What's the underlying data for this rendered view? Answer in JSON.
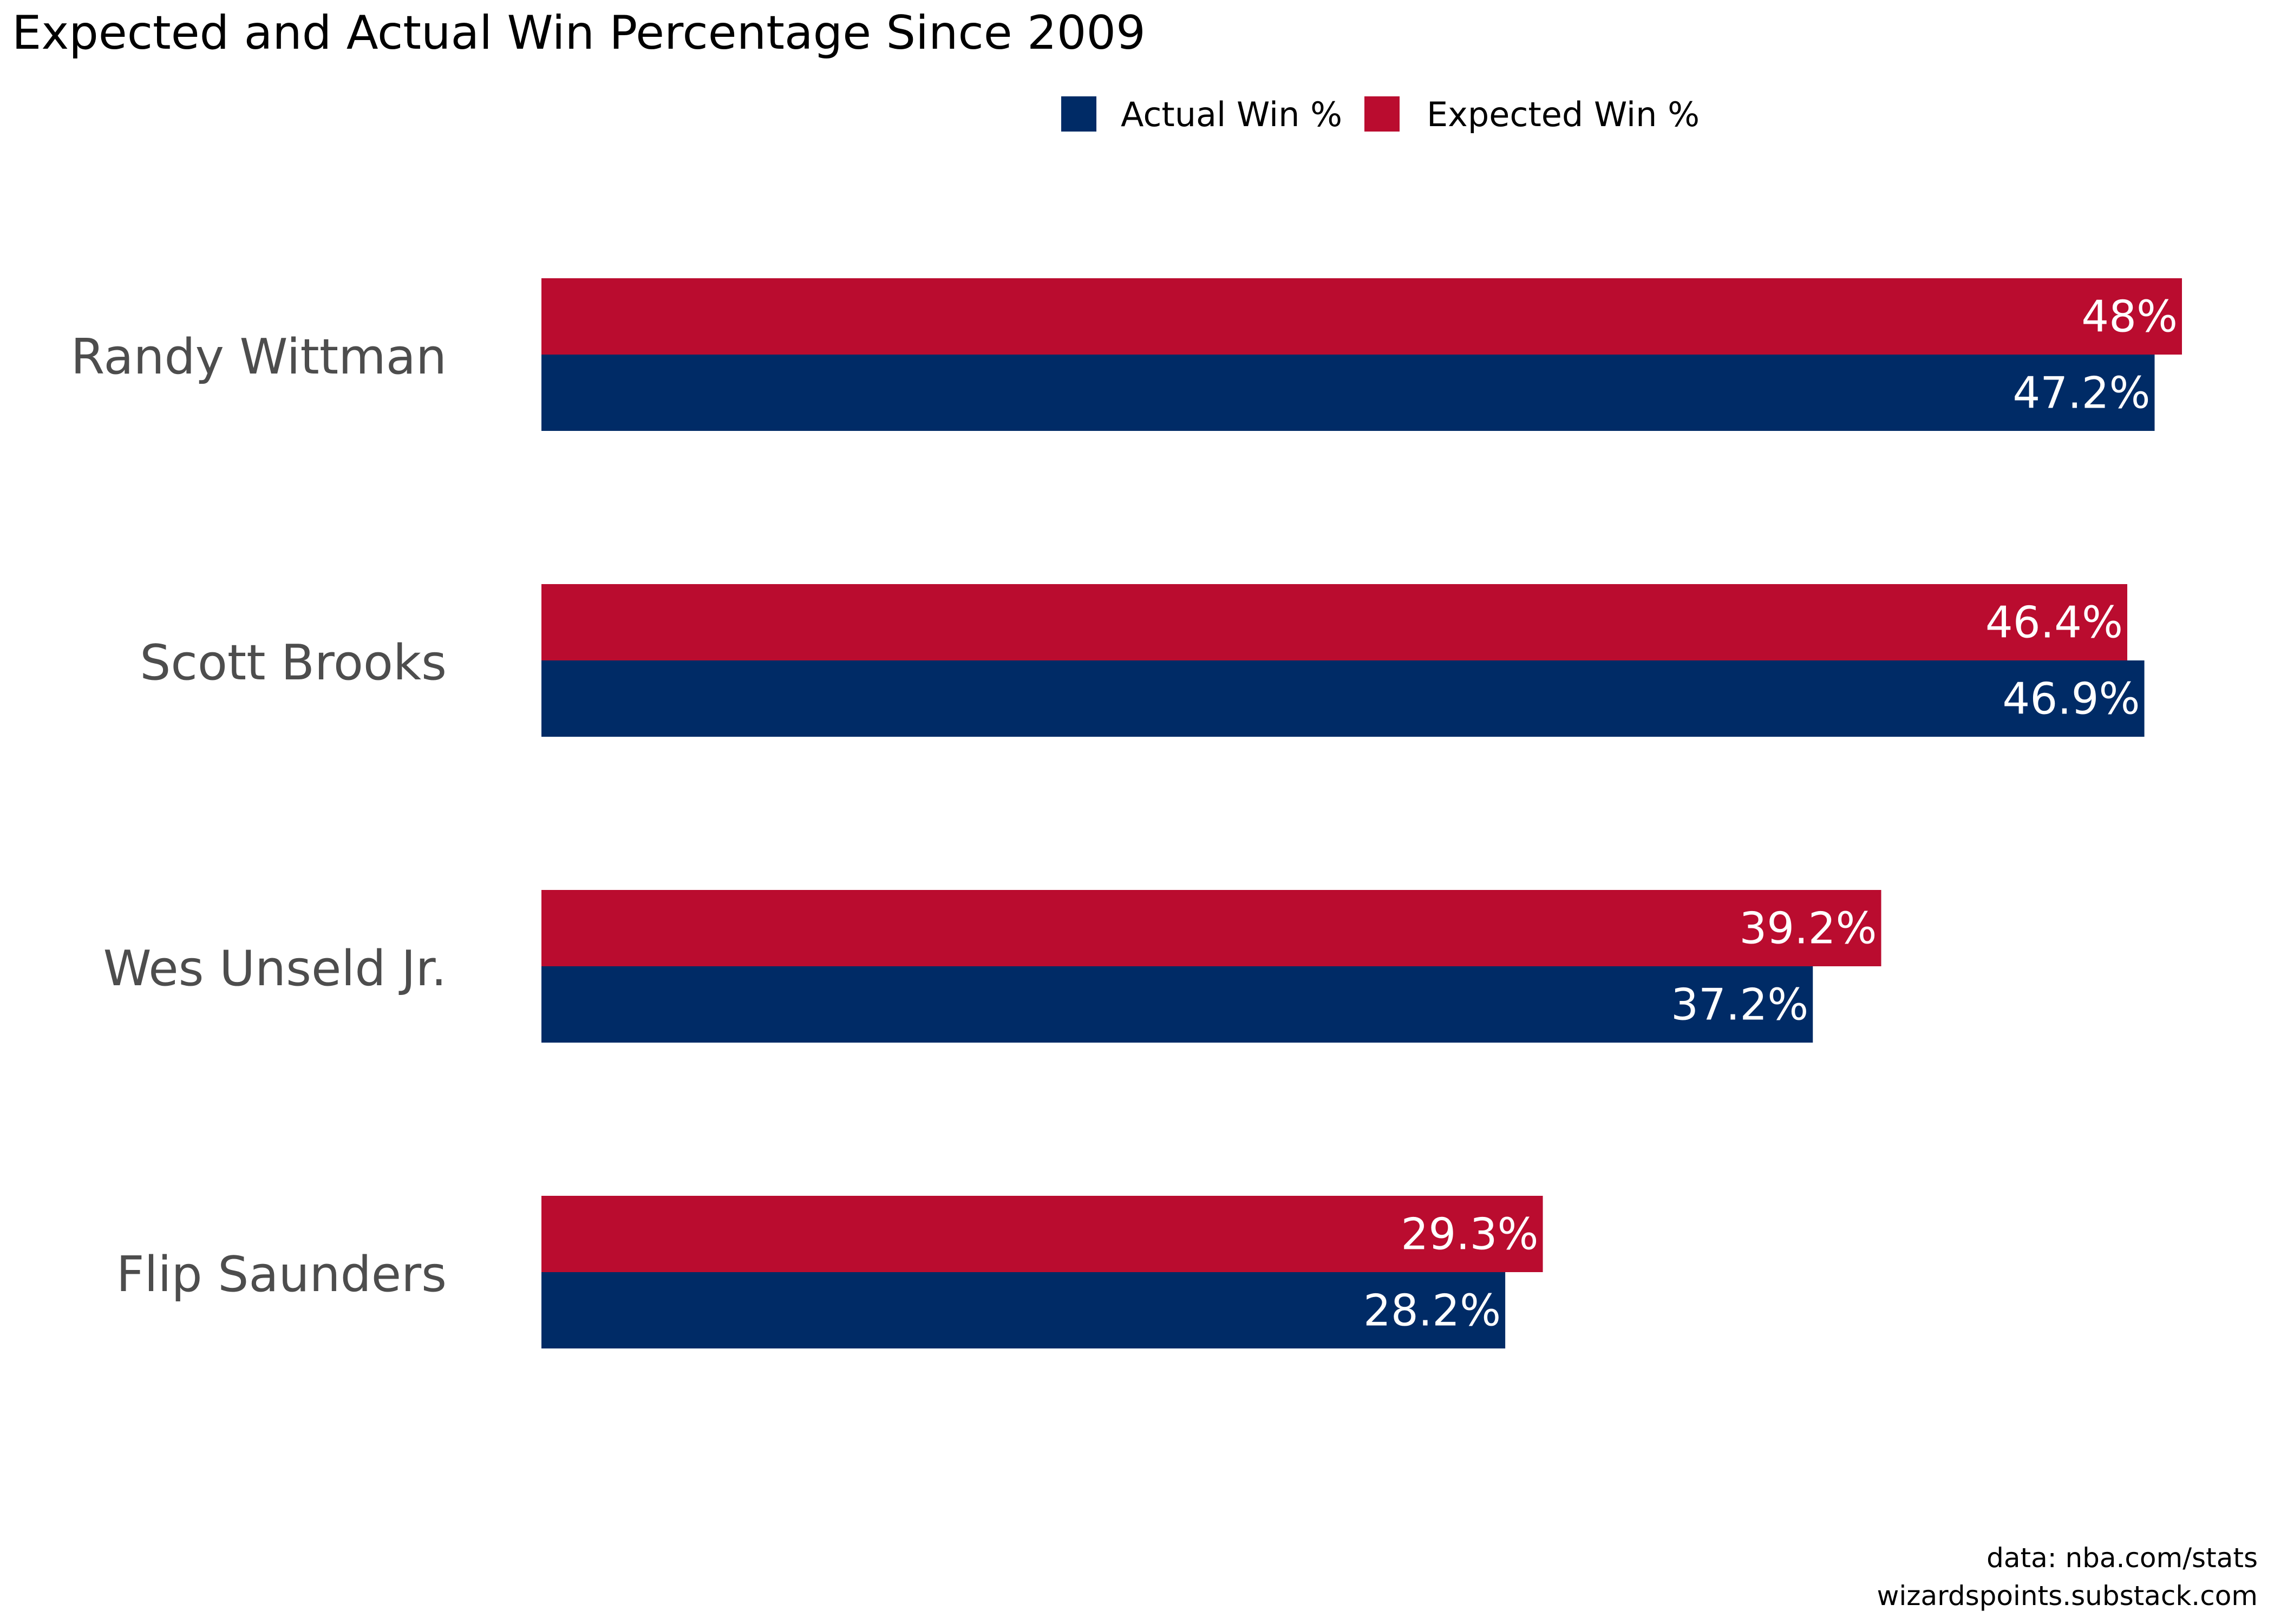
{
  "chart_data": {
    "type": "bar",
    "orientation": "horizontal",
    "title": "Expected and Actual Win Percentage Since 2009",
    "categories": [
      "Randy Wittman",
      "Scott Brooks",
      "Wes Unseld Jr.",
      "Flip Saunders"
    ],
    "series": [
      {
        "name": "Expected Win %",
        "color": "#ba0c2f",
        "values": [
          48.0,
          46.4,
          39.2,
          29.3
        ],
        "labels": [
          "48%",
          "46.4%",
          "39.2%",
          "29.3%"
        ]
      },
      {
        "name": "Actual Win %",
        "color": "#002b66",
        "values": [
          47.2,
          46.9,
          37.2,
          28.2
        ],
        "labels": [
          "47.2%",
          "46.9%",
          "37.2%",
          "28.2%"
        ]
      }
    ],
    "legend_order": [
      "Actual Win %",
      "Expected Win %"
    ],
    "legend_position": "top",
    "xlim": [
      0,
      48
    ],
    "grid": false,
    "axes_visible": false
  },
  "caption": {
    "line1": "data: nba.com/stats",
    "line2": "wizardspoints.substack.com"
  }
}
